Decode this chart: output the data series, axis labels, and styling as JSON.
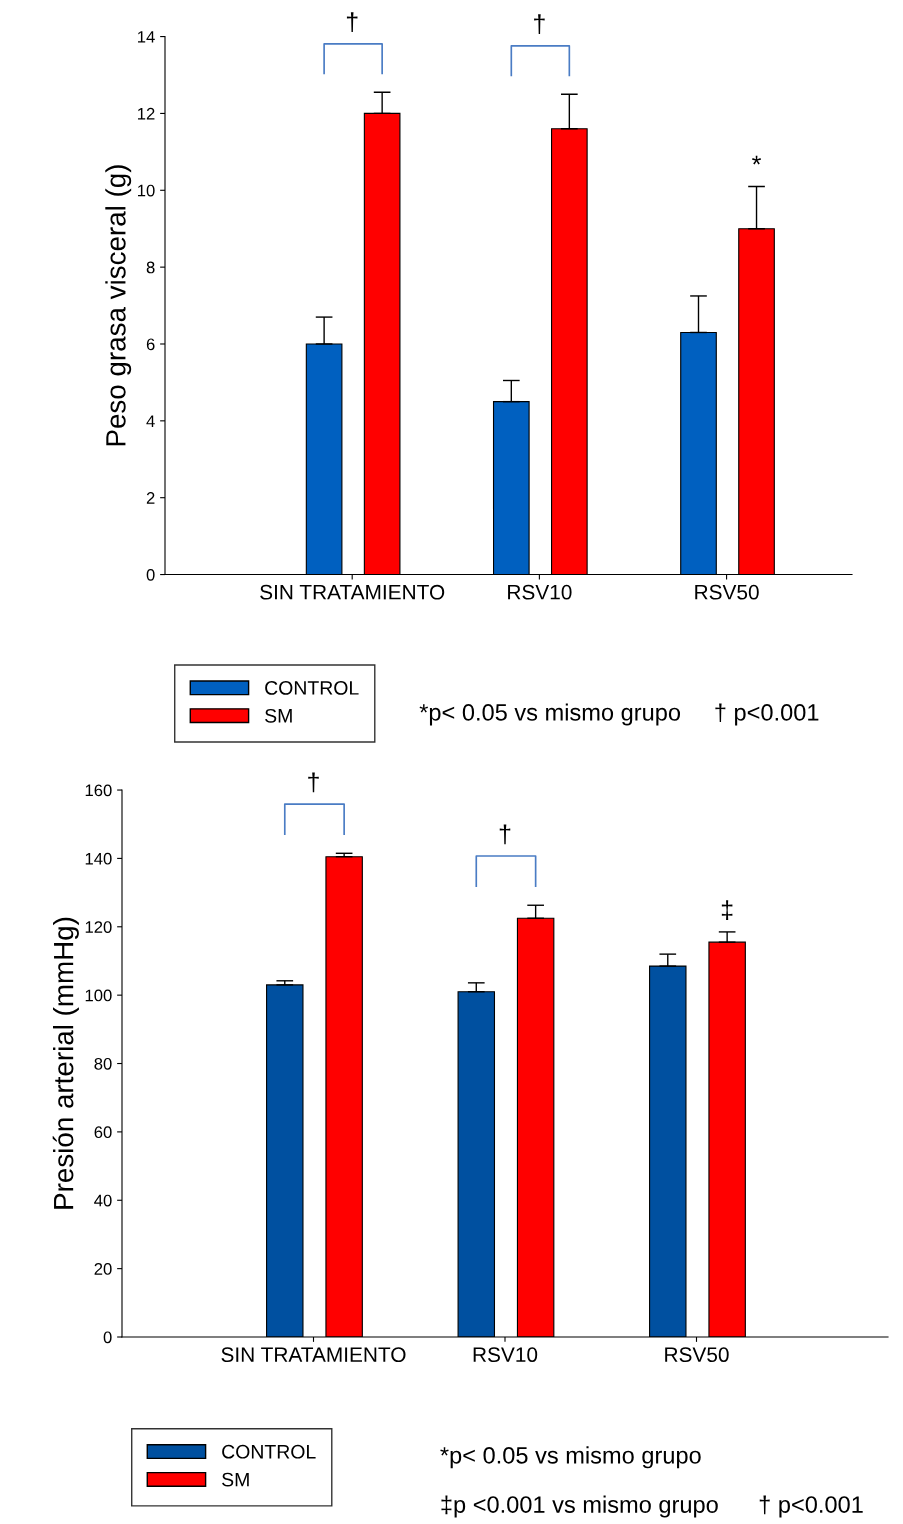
{
  "chart_data": [
    {
      "type": "bar",
      "ylabel": "Peso grasa visceral (g)",
      "categories": [
        "SIN TRATAMIENTO",
        "RSV10",
        "RSV50"
      ],
      "series": [
        {
          "name": "CONTROL",
          "color": "#0060c0",
          "values": [
            6.0,
            4.5,
            6.3
          ],
          "errors": [
            0.7,
            0.55,
            0.95
          ]
        },
        {
          "name": "SM",
          "color": "#ff0000",
          "values": [
            12.0,
            11.6,
            9.0
          ],
          "errors": [
            0.55,
            0.9,
            1.1
          ]
        }
      ],
      "ylim": [
        0,
        14
      ],
      "yticks": [
        0,
        2,
        4,
        6,
        8,
        10,
        12,
        14
      ],
      "legend": "bottom left",
      "grid": false,
      "annotations": [
        "†",
        "†",
        "*",
        "*p< 0.05 vs mismo grupo     † p<0.001"
      ]
    },
    {
      "type": "bar",
      "ylabel": "Presión arterial (mmHg)",
      "categories": [
        "SIN TRATAMIENTO",
        "RSV10",
        "RSV50"
      ],
      "series": [
        {
          "name": "CONTROL",
          "color": "#0050a0",
          "values": [
            103,
            101,
            108.5
          ],
          "errors": [
            1.2,
            2.6,
            3.5
          ]
        },
        {
          "name": "SM",
          "color": "#ff0000",
          "values": [
            140.5,
            122.5,
            115.5
          ],
          "errors": [
            1.0,
            3.8,
            3.0
          ]
        }
      ],
      "ylim": [
        0,
        160
      ],
      "yticks": [
        0,
        20,
        40,
        60,
        80,
        100,
        120,
        140,
        160
      ],
      "legend": "bottom left",
      "grid": false,
      "annotations": [
        "†",
        "†",
        "‡",
        "*p< 0.05 vs mismo grupo",
        "‡p <0.001 vs mismo grupo      † p<0.001"
      ]
    }
  ]
}
